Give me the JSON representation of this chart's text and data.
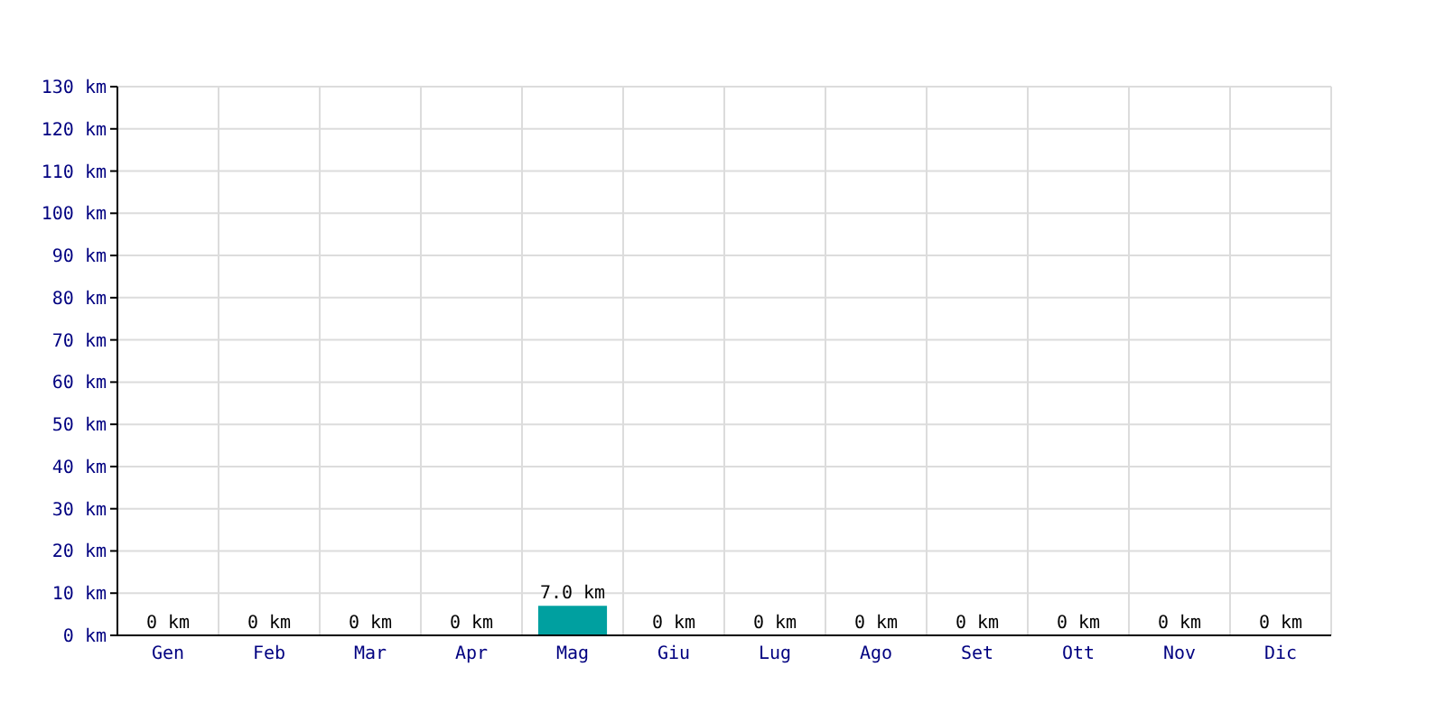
{
  "chart_data": {
    "type": "bar",
    "categories": [
      "Gen",
      "Feb",
      "Mar",
      "Apr",
      "Mag",
      "Giu",
      "Lug",
      "Ago",
      "Set",
      "Ott",
      "Nov",
      "Dic"
    ],
    "values": [
      0,
      0,
      0,
      0,
      7,
      0,
      0,
      0,
      0,
      0,
      0,
      0
    ],
    "value_labels": [
      "0 km",
      "0 km",
      "0 km",
      "0 km",
      "7.0 km",
      "0 km",
      "0 km",
      "0 km",
      "0 km",
      "0 km",
      "0 km",
      "0 km"
    ],
    "color": "#00a0a0",
    "ylim": [
      0,
      130
    ],
    "yticks": [
      {
        "value": 0,
        "label": "0 km"
      },
      {
        "value": 10,
        "label": "10 km"
      },
      {
        "value": 20,
        "label": "20 km"
      },
      {
        "value": 30,
        "label": "30 km"
      },
      {
        "value": 40,
        "label": "40 km"
      },
      {
        "value": 50,
        "label": "50 km"
      },
      {
        "value": 60,
        "label": "60 km"
      },
      {
        "value": 70,
        "label": "70 km"
      },
      {
        "value": 80,
        "label": "80 km"
      },
      {
        "value": 90,
        "label": "90 km"
      },
      {
        "value": 100,
        "label": "100 km"
      },
      {
        "value": 110,
        "label": "110 km"
      },
      {
        "value": 120,
        "label": "120 km"
      },
      {
        "value": 130,
        "label": "130 km"
      }
    ],
    "grid": true
  }
}
